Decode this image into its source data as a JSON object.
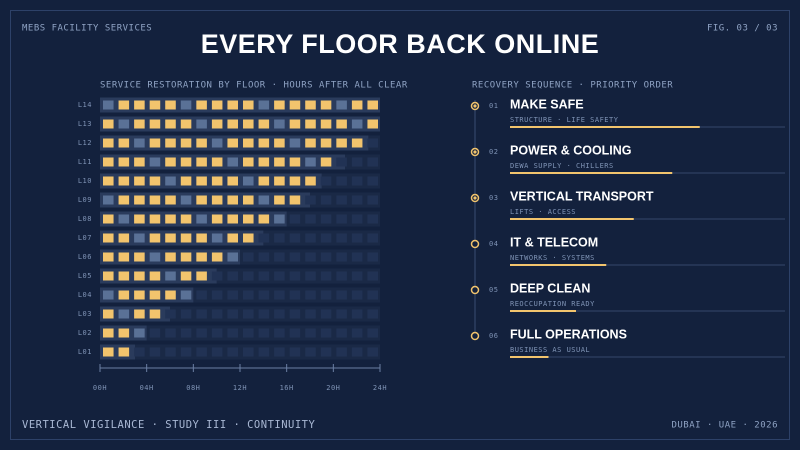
{
  "header": {
    "left": "MEBS FACILITY SERVICES",
    "right": "FIG. 03 / 03",
    "title": "EVERY FLOOR BACK ONLINE"
  },
  "chart_data": {
    "type": "bar",
    "orientation": "horizontal",
    "title": "SERVICE RESTORATION BY FLOOR · HOURS AFTER ALL CLEAR",
    "categories": [
      "L14",
      "L13",
      "L12",
      "L11",
      "L10",
      "L09",
      "L08",
      "L07",
      "L06",
      "L05",
      "L04",
      "L03",
      "L02",
      "L01"
    ],
    "values": [
      24,
      24,
      23,
      21,
      19,
      18,
      16,
      14,
      12,
      10,
      8,
      6,
      4,
      3
    ],
    "color": "#f2c46d",
    "xlim": [
      0,
      24
    ],
    "xticks": [
      {
        "value": 0,
        "label": "00H"
      },
      {
        "value": 4,
        "label": "04H"
      },
      {
        "value": 8,
        "label": "08H"
      },
      {
        "value": 12,
        "label": "12H"
      },
      {
        "value": 16,
        "label": "16H"
      },
      {
        "value": 20,
        "label": "20H"
      },
      {
        "value": 24,
        "label": "24H"
      }
    ]
  },
  "sequence": {
    "title": "RECOVERY SEQUENCE · PRIORITY ORDER",
    "steps": [
      {
        "number": "01",
        "title": "MAKE SAFE",
        "subtitle": "STRUCTURE · LIFE SAFETY",
        "progress": 69,
        "complete": true
      },
      {
        "number": "02",
        "title": "POWER & COOLING",
        "subtitle": "DEWA SUPPLY · CHILLERS",
        "progress": 59,
        "complete": true
      },
      {
        "number": "03",
        "title": "VERTICAL TRANSPORT",
        "subtitle": "LIFTS · ACCESS",
        "progress": 45,
        "complete": true
      },
      {
        "number": "04",
        "title": "IT & TELECOM",
        "subtitle": "NETWORKS · SYSTEMS",
        "progress": 35,
        "complete": false
      },
      {
        "number": "05",
        "title": "DEEP CLEAN",
        "subtitle": "REOCCUPATION READY",
        "progress": 24,
        "complete": false
      },
      {
        "number": "06",
        "title": "FULL OPERATIONS",
        "subtitle": "BUSINESS AS USUAL",
        "progress": 14,
        "complete": false
      }
    ]
  },
  "footer": {
    "left": "VERTICAL VIGILANCE · STUDY III · CONTINUITY",
    "right": "DUBAI · UAE · 2026"
  }
}
